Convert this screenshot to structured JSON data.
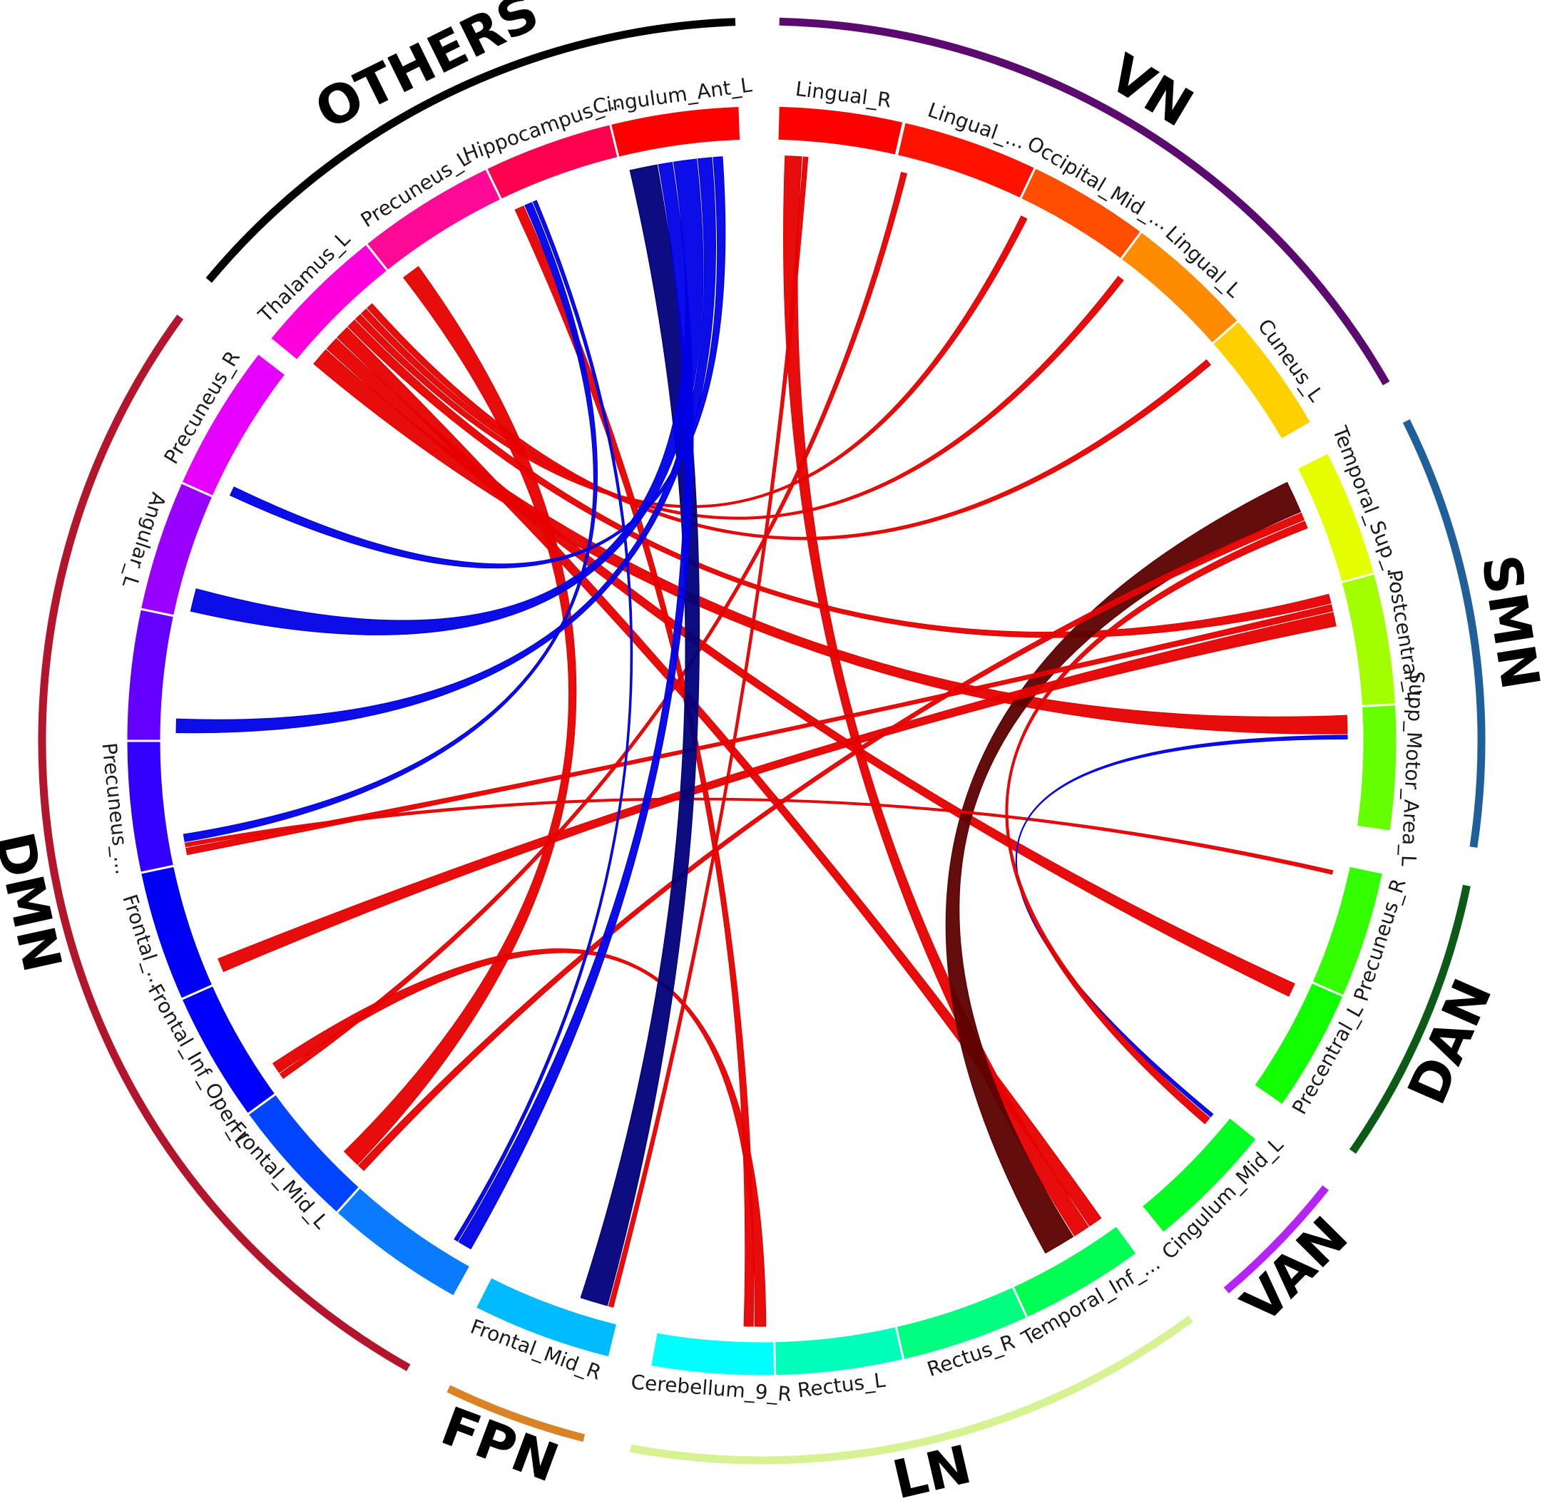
{
  "groups": [
    {
      "id": "OTHERS",
      "name": "OTHERS",
      "color": "#000000"
    },
    {
      "id": "VN",
      "name": "VN",
      "color": "#5b0b6f"
    },
    {
      "id": "SMN",
      "name": "SMN",
      "color": "#1f5f9a"
    },
    {
      "id": "DAN",
      "name": "DAN",
      "color": "#0b5a16"
    },
    {
      "id": "VAN",
      "name": "VAN",
      "color": "#b424f5"
    },
    {
      "id": "LN",
      "name": "LN",
      "color": "#d6f292"
    },
    {
      "id": "FPN",
      "name": "FPN",
      "color": "#d98226"
    },
    {
      "id": "DMN",
      "name": "DMN",
      "color": "#b3162c"
    }
  ],
  "segments": [
    {
      "id": "lingual_r",
      "label": "Lingual_R",
      "group": "VN",
      "color": "#ff0000"
    },
    {
      "id": "lingual_2",
      "label": "Lingual_...",
      "group": "VN",
      "color": "#ff1200"
    },
    {
      "id": "occipital_mid",
      "label": "Occipital_Mid_...",
      "group": "VN",
      "color": "#ff4e00"
    },
    {
      "id": "lingual_l",
      "label": "Lingual_L",
      "group": "VN",
      "color": "#ff8c00"
    },
    {
      "id": "cuneus_l",
      "label": "Cuneus_L",
      "group": "VN",
      "color": "#ffd000"
    },
    {
      "id": "temporal_sup",
      "label": "Temporal_Sup_...",
      "group": "SMN",
      "color": "#e6ff00"
    },
    {
      "id": "postcentral_l",
      "label": "Postcentral_L",
      "group": "SMN",
      "color": "#a2ff00"
    },
    {
      "id": "supp_motor_area_l",
      "label": "Supp_Motor_Area_L",
      "group": "SMN",
      "color": "#66ff00"
    },
    {
      "id": "precuneus_r_dan",
      "label": "Precuneus_R",
      "group": "DAN",
      "color": "#33ff00"
    },
    {
      "id": "precentral_l",
      "label": "Precentral_L",
      "group": "DAN",
      "color": "#11ff00"
    },
    {
      "id": "cingulum_mid_l",
      "label": "Cingulum_Mid_L",
      "group": "VAN",
      "color": "#00ff22"
    },
    {
      "id": "temporal_inf",
      "label": "Temporal_Inf_...",
      "group": "LN",
      "color": "#00ff55"
    },
    {
      "id": "rectus_r",
      "label": "Rectus_R",
      "group": "LN",
      "color": "#00ff80"
    },
    {
      "id": "rectus_l",
      "label": "Rectus_L",
      "group": "LN",
      "color": "#00ffbb"
    },
    {
      "id": "cerebellum_9_r",
      "label": "Cerebellum_9_R",
      "group": "LN",
      "color": "#00ffff"
    },
    {
      "id": "frontal_mid_r",
      "label": "Frontal_Mid_R",
      "group": "FPN",
      "color": "#00bbff"
    },
    {
      "id": "dmn_1",
      "group": "DMN",
      "color": "#0a7aff"
    },
    {
      "id": "frontal_mid_l",
      "label": "Frontal_Mid_L",
      "group": "DMN",
      "color": "#0044ff"
    },
    {
      "id": "frontal_inf_oper_l",
      "label": "Frontal_Inf_Oper_L",
      "group": "DMN",
      "color": "#0000ff"
    },
    {
      "id": "dmn_4",
      "label": "Frontal_...",
      "group": "DMN",
      "color": "#0000f5"
    },
    {
      "id": "dmn_5",
      "label": "Precuneus_...",
      "group": "DMN",
      "color": "#3300ff"
    },
    {
      "id": "dmn_6",
      "group": "DMN",
      "color": "#6400ff"
    },
    {
      "id": "angular_l",
      "label": "Angular_L",
      "group": "DMN",
      "color": "#9a00ff"
    },
    {
      "id": "precuneus_r",
      "label": "Precuneus_R",
      "group": "DMN",
      "color": "#e600ff"
    },
    {
      "id": "thalamus_l",
      "label": "Thalamus_L",
      "group": "OTHERS",
      "color": "#ff00dd"
    },
    {
      "id": "precuneus_l",
      "label": "Precuneus_L",
      "group": "OTHERS",
      "color": "#ff0a96"
    },
    {
      "id": "hippocampus",
      "label": "Hippocampus_...",
      "group": "OTHERS",
      "color": "#ff004e"
    },
    {
      "id": "cingulum_ant_l",
      "label": "Cingulum_Ant_L",
      "group": "OTHERS",
      "color": "#ff0000"
    }
  ],
  "link_colors": {
    "positive": "#e60000",
    "negative": "#0000e6",
    "positive-strong": "#5c0000",
    "negative-strong": "#00007a"
  },
  "links": [
    {
      "source": "thalamus_l",
      "target": "supp_motor_area_l",
      "strength": 2,
      "type": "positive"
    },
    {
      "source": "thalamus_l",
      "target": "precentral_l",
      "strength": 1.5,
      "type": "positive"
    },
    {
      "source": "thalamus_l",
      "target": "temporal_inf",
      "strength": 1.5,
      "type": "positive"
    },
    {
      "source": "thalamus_l",
      "target": "postcentral_l",
      "strength": 1,
      "type": "positive"
    },
    {
      "source": "thalamus_l",
      "target": "occipital_mid",
      "strength": 0.7,
      "type": "positive"
    },
    {
      "source": "thalamus_l",
      "target": "lingual_l",
      "strength": 0.7,
      "type": "positive"
    },
    {
      "source": "thalamus_l",
      "target": "cuneus_l",
      "strength": 0.7,
      "type": "positive"
    },
    {
      "source": "lingual_r",
      "target": "temporal_inf",
      "strength": 1.8,
      "type": "positive"
    },
    {
      "source": "lingual_2",
      "target": "frontal_inf_oper_l",
      "strength": 0.6,
      "type": "positive"
    },
    {
      "source": "temporal_sup",
      "target": "temporal_inf",
      "strength": 3.5,
      "type": "positive-strong"
    },
    {
      "source": "temporal_sup",
      "target": "frontal_mid_l",
      "strength": 0.8,
      "type": "positive"
    },
    {
      "source": "postcentral_l",
      "target": "dmn_5",
      "strength": 0.7,
      "type": "positive"
    },
    {
      "source": "precuneus_r_dan",
      "target": "dmn_5",
      "strength": 0.4,
      "type": "positive"
    },
    {
      "source": "cingulum_mid_l",
      "target": "supp_motor_area_l",
      "strength": 0.4,
      "type": "negative"
    },
    {
      "source": "cingulum_mid_l",
      "target": "temporal_sup",
      "strength": 0.8,
      "type": "positive"
    },
    {
      "source": "cerebellum_9_r",
      "target": "frontal_inf_oper_l",
      "strength": 1.2,
      "type": "positive"
    },
    {
      "source": "cerebellum_9_r",
      "target": "hippocampus",
      "strength": 1,
      "type": "positive"
    },
    {
      "source": "frontal_mid_l",
      "target": "precuneus_l",
      "strength": 2,
      "type": "positive"
    },
    {
      "source": "dmn_4",
      "target": "postcentral_l",
      "strength": 1.5,
      "type": "positive"
    },
    {
      "source": "frontal_mid_r",
      "target": "lingual_r",
      "strength": 0.5,
      "type": "positive"
    },
    {
      "source": "cingulum_ant_l",
      "target": "frontal_mid_r",
      "strength": 3,
      "type": "negative-strong"
    },
    {
      "source": "cingulum_ant_l",
      "target": "dmn_1",
      "strength": 1.5,
      "type": "negative"
    },
    {
      "source": "cingulum_ant_l",
      "target": "angular_l",
      "strength": 2.5,
      "type": "negative"
    },
    {
      "source": "cingulum_ant_l",
      "target": "dmn_6",
      "strength": 1.5,
      "type": "negative"
    },
    {
      "source": "cingulum_ant_l",
      "target": "precuneus_r",
      "strength": 1,
      "type": "negative"
    },
    {
      "source": "hippocampus",
      "target": "dmn_5",
      "strength": 0.8,
      "type": "negative"
    },
    {
      "source": "hippocampus",
      "target": "dmn_1",
      "strength": 0.4,
      "type": "negative"
    }
  ]
}
